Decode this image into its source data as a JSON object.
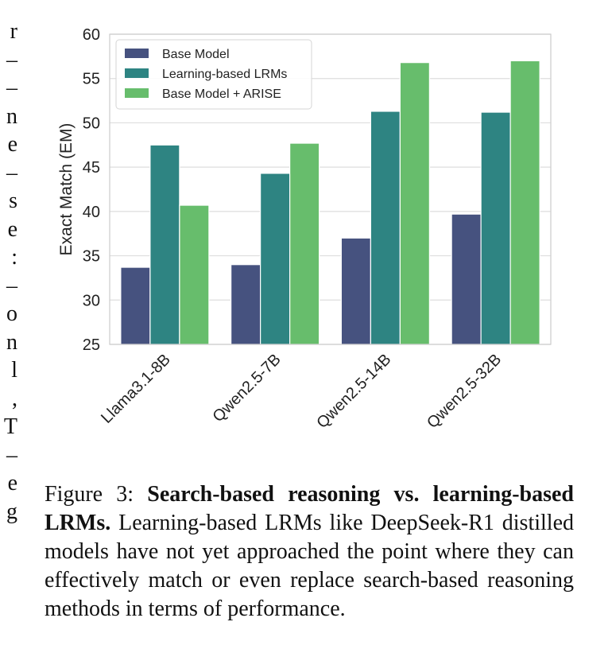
{
  "margin_text": [
    "r",
    "–",
    "–",
    "n",
    "e",
    "–",
    "s",
    "e",
    ":",
    "–",
    "o",
    "n",
    "l",
    ",",
    "T",
    "–",
    "e",
    "g"
  ],
  "caption": {
    "label": "Figure 3: ",
    "bold": "Search-based reasoning vs. learning-based LRMs.",
    "text": " Learning-based LRMs like DeepSeek-R1 distilled models have not yet approached the point where they can effectively match or even replace search-based reasoning methods in terms of performance."
  },
  "chart_data": {
    "type": "bar",
    "categories": [
      "Llama3.1-8B",
      "Qwen2.5-7B",
      "Qwen2.5-14B",
      "Qwen2.5-32B"
    ],
    "series": [
      {
        "name": "Base Model",
        "values": [
          33.7,
          34.0,
          37.0,
          39.7
        ],
        "color": "#46527f"
      },
      {
        "name": "Learning-based LRMs",
        "values": [
          47.5,
          44.3,
          51.3,
          51.2
        ],
        "color": "#2e8482"
      },
      {
        "name": "Base Model + ARISE",
        "values": [
          40.7,
          47.7,
          56.8,
          57.0
        ],
        "color": "#67bd6c"
      }
    ],
    "title": "",
    "xlabel": "",
    "ylabel": "Exact Match (EM)",
    "ylim": [
      25,
      60
    ],
    "yticks": [
      25,
      30,
      35,
      40,
      45,
      50,
      55,
      60
    ],
    "grid": true,
    "legend_position": "top-left"
  }
}
